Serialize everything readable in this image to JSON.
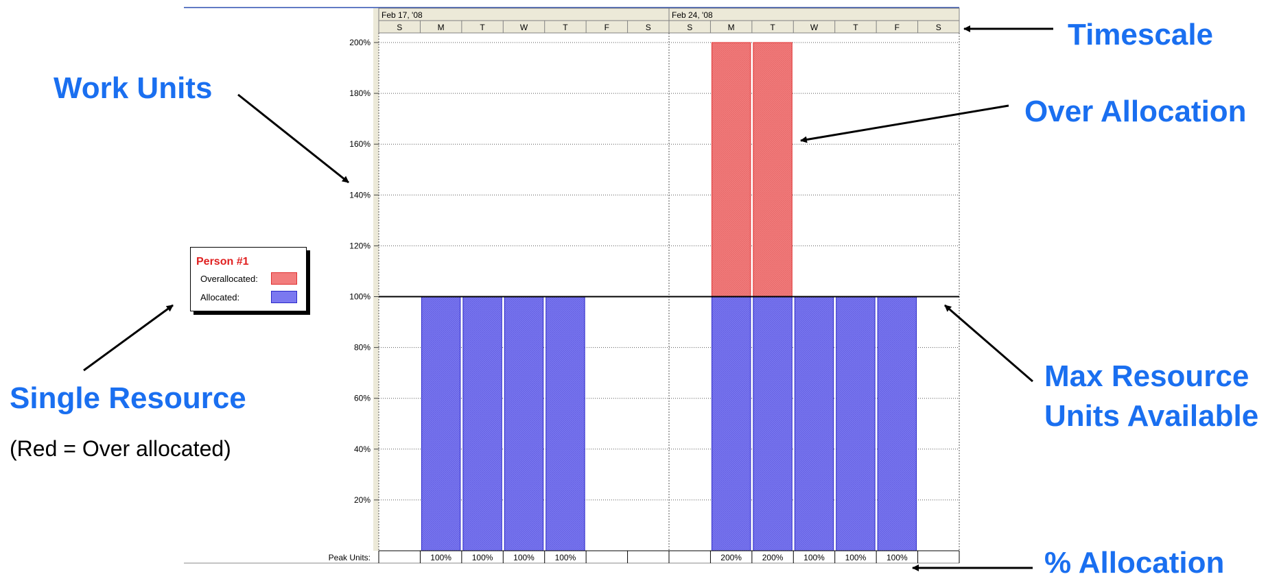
{
  "chart_data": {
    "type": "bar",
    "stacked": true,
    "timescale": {
      "weeks": [
        {
          "label": "Feb 17, '08",
          "days": [
            "S",
            "M",
            "T",
            "W",
            "T",
            "F",
            "S"
          ]
        },
        {
          "label": "Feb 24, '08",
          "days": [
            "S",
            "M",
            "T",
            "W",
            "T",
            "F",
            "S"
          ]
        }
      ]
    },
    "series": [
      {
        "name": "Allocated",
        "color": "#7b78f0",
        "values": [
          0,
          100,
          100,
          100,
          100,
          0,
          0,
          0,
          100,
          100,
          100,
          100,
          100,
          0
        ]
      },
      {
        "name": "Overallocated",
        "color": "#f27d7d",
        "values": [
          0,
          0,
          0,
          0,
          0,
          0,
          0,
          0,
          100,
          100,
          0,
          0,
          0,
          0
        ]
      }
    ],
    "y_ticks": [
      "20%",
      "40%",
      "60%",
      "80%",
      "100%",
      "120%",
      "140%",
      "160%",
      "180%",
      "200%"
    ],
    "ylim": [
      0,
      200
    ],
    "max_units": 100,
    "peak_units_label": "Peak Units:",
    "peak_units": [
      "",
      "100%",
      "100%",
      "100%",
      "100%",
      "",
      "",
      "",
      "200%",
      "200%",
      "100%",
      "100%",
      "100%",
      ""
    ],
    "grid": true
  },
  "legend": {
    "title": "Person #1",
    "items": [
      {
        "label": "Overallocated:",
        "color": "#f27d7d",
        "border": "#e03030"
      },
      {
        "label": "Allocated:",
        "color": "#7b78f0",
        "border": "#2a28c8"
      }
    ]
  },
  "callouts": {
    "work_units": "Work Units",
    "single_resource": "Single Resource",
    "red_note": "(Red = Over allocated)",
    "timescale": "Timescale",
    "over_allocation": "Over Allocation",
    "max_resource": "Max Resource Units Available",
    "pct_allocation": "% Allocation"
  },
  "colors": {
    "accent": "#1a6ff0",
    "header_bg": "#ece9d8",
    "allocated": "#7b78f0",
    "overallocated": "#f27d7d"
  }
}
